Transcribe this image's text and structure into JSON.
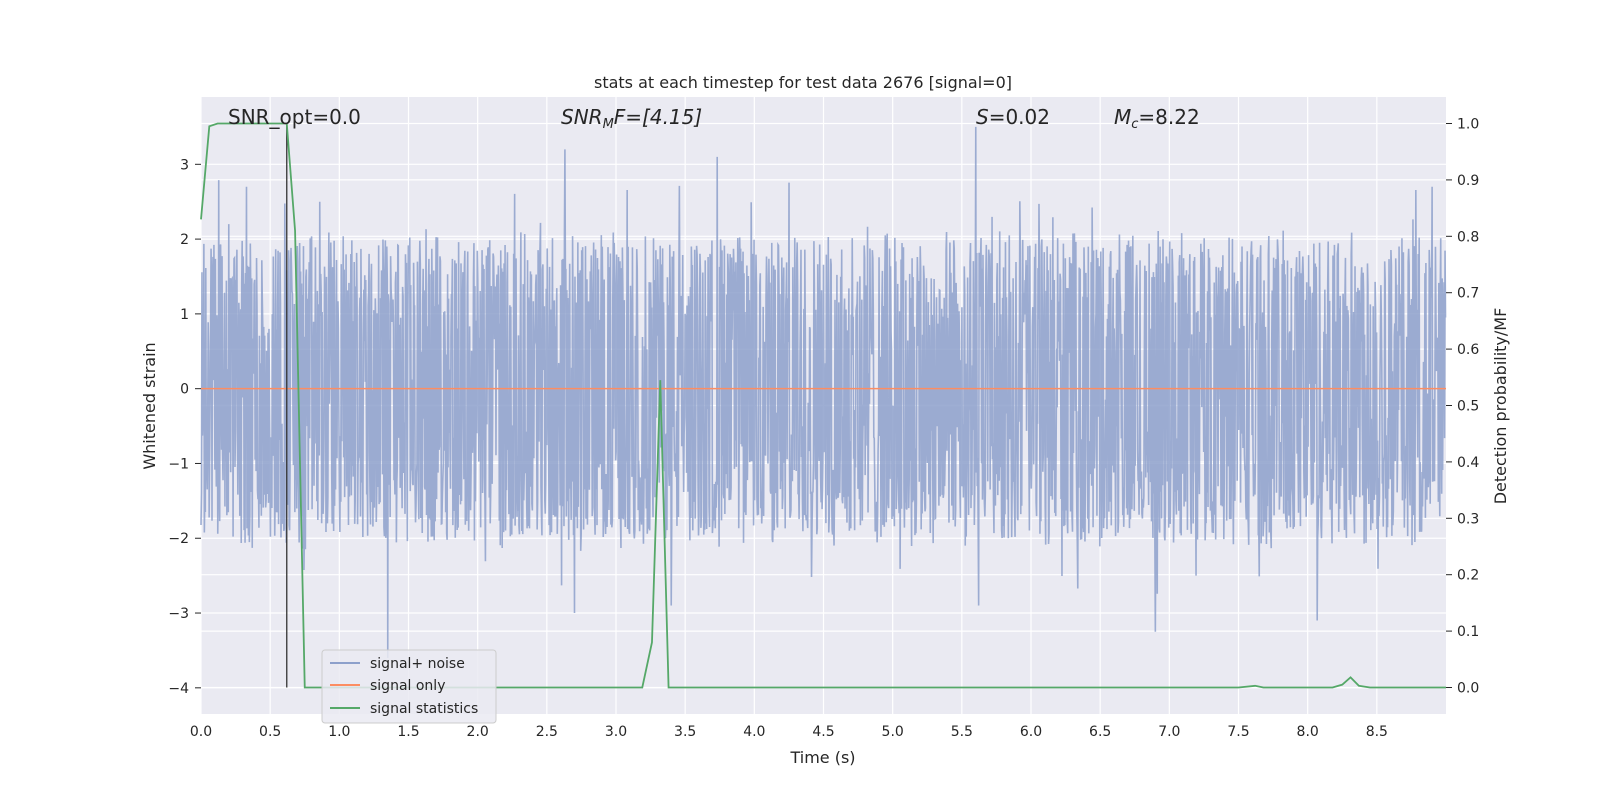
{
  "chart_data": {
    "type": "line",
    "title": "stats at each timestep for test data 2676 [signal=0]",
    "xlabel": "Time (s)",
    "ylabel_left": "Whitened strain",
    "ylabel_right": "Detection probability/MF",
    "xlim": [
      0.0,
      9.0
    ],
    "ylim_left": [
      -4.35,
      3.9
    ],
    "ylim_right": [
      -0.047,
      1.047
    ],
    "x_ticks": [
      "0.0",
      "0.5",
      "1.0",
      "1.5",
      "2.0",
      "2.5",
      "3.0",
      "3.5",
      "4.0",
      "4.5",
      "5.0",
      "5.5",
      "6.0",
      "6.5",
      "7.0",
      "7.5",
      "8.0",
      "8.5"
    ],
    "y_ticks_left": [
      "3",
      "2",
      "1",
      "0",
      "−1",
      "−2",
      "−3",
      "−4"
    ],
    "y_ticks_right": [
      "1.0",
      "0.9",
      "0.8",
      "0.7",
      "0.6",
      "0.5",
      "0.4",
      "0.3",
      "0.2",
      "0.1",
      "0.0"
    ],
    "grid": true,
    "legend_position": "lower-left",
    "annotations": {
      "snr_opt": "SNR_opt=0.0",
      "snr_mf_sym": "SNR",
      "snr_mf_sub": "M",
      "snr_mf_rest": "F=[4.15]",
      "s_sym": "S",
      "s_rest": "=0.02",
      "mc_sym": "M",
      "mc_sub": "c",
      "mc_rest": "=8.22"
    },
    "marker_line_x": 0.62,
    "series": [
      {
        "name": "signal+ noise",
        "color": "#8da0cb",
        "description_values": "whitened noise strain, approx uniform amplitude",
        "envelope_typical": [
          -1.8,
          1.9
        ],
        "peaks": [
          [
            0.2,
            2.2
          ],
          [
            0.33,
            2.7
          ],
          [
            1.35,
            -3.6
          ],
          [
            2.63,
            3.2
          ],
          [
            2.7,
            -3.0
          ],
          [
            3.4,
            -2.9
          ],
          [
            3.73,
            3.1
          ],
          [
            5.6,
            3.5
          ],
          [
            5.62,
            -2.9
          ],
          [
            6.9,
            -3.25
          ],
          [
            8.07,
            -3.1
          ],
          [
            8.9,
            2.7
          ]
        ]
      },
      {
        "name": "signal only",
        "color": "#fc8d62",
        "x": [
          0.0,
          9.0
        ],
        "y": [
          0.0,
          0.0
        ]
      },
      {
        "name": "signal statistics",
        "color": "#55a868",
        "axis": "right",
        "x": [
          0.0,
          0.06,
          0.12,
          0.5,
          0.62,
          0.68,
          0.75,
          3.19,
          3.26,
          3.32,
          3.38,
          4.5,
          7.5,
          7.62,
          7.68,
          8.18,
          8.25,
          8.31,
          8.37,
          8.45,
          9.0
        ],
        "y": [
          0.83,
          0.995,
          1.0,
          1.0,
          1.0,
          0.81,
          0.0,
          0.0,
          0.08,
          0.545,
          0.0,
          0.0,
          0.0,
          0.003,
          0.0,
          0.0,
          0.005,
          0.018,
          0.003,
          0.0,
          0.0
        ]
      }
    ]
  }
}
